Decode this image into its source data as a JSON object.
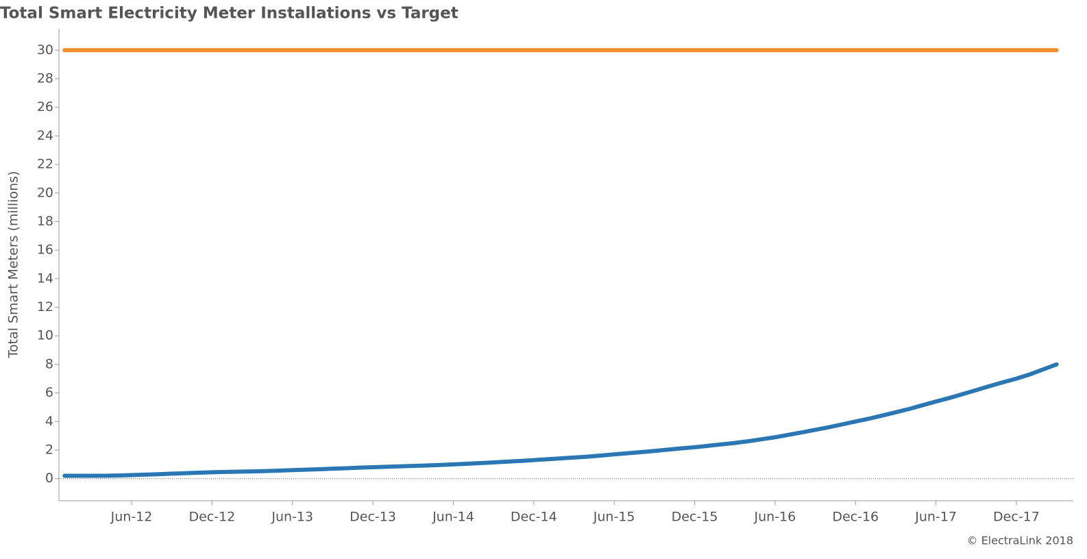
{
  "chart_data": {
    "type": "line",
    "title": "Total Smart Electricity Meter Installations vs Target",
    "y_label": "Total Smart Meters (millions)",
    "footnote": "© ElectraLink 2018",
    "categories": [
      null,
      null,
      null,
      null,
      null,
      "Jun-12",
      null,
      null,
      null,
      null,
      null,
      "Dec-12",
      null,
      null,
      null,
      null,
      null,
      "Jun-13",
      null,
      null,
      null,
      null,
      null,
      "Dec-13",
      null,
      null,
      null,
      null,
      null,
      "Jun-14",
      null,
      null,
      null,
      null,
      null,
      "Dec-14",
      null,
      null,
      null,
      null,
      null,
      "Jun-15",
      null,
      null,
      null,
      null,
      null,
      "Dec-15",
      null,
      null,
      null,
      null,
      null,
      "Jun-16",
      null,
      null,
      null,
      null,
      null,
      "Dec-16",
      null,
      null,
      null,
      null,
      null,
      "Jun-17",
      null,
      null,
      null,
      null,
      null,
      "Dec-17",
      null,
      null,
      null
    ],
    "series": [
      {
        "color": "#f28e2b",
        "values": [
          30,
          30,
          30,
          30,
          30,
          30,
          30,
          30,
          30,
          30,
          30,
          30,
          30,
          30,
          30,
          30,
          30,
          30,
          30,
          30,
          30,
          30,
          30,
          30,
          30,
          30,
          30,
          30,
          30,
          30,
          30,
          30,
          30,
          30,
          30,
          30,
          30,
          30,
          30,
          30,
          30,
          30,
          30,
          30,
          30,
          30,
          30,
          30,
          30,
          30,
          30,
          30,
          30,
          30,
          30,
          30,
          30,
          30,
          30,
          30,
          30,
          30,
          30,
          30,
          30,
          30,
          30,
          30,
          30,
          30,
          30,
          30,
          30,
          30,
          30
        ]
      },
      {
        "color": "#2a77b4",
        "values": [
          0.2,
          0.2,
          0.2,
          0.2,
          0.22,
          0.25,
          0.28,
          0.31,
          0.35,
          0.38,
          0.42,
          0.45,
          0.47,
          0.49,
          0.51,
          0.53,
          0.56,
          0.6,
          0.63,
          0.66,
          0.7,
          0.73,
          0.77,
          0.8,
          0.83,
          0.86,
          0.89,
          0.92,
          0.96,
          1.0,
          1.04,
          1.09,
          1.14,
          1.19,
          1.24,
          1.3,
          1.36,
          1.42,
          1.48,
          1.54,
          1.62,
          1.7,
          1.78,
          1.86,
          1.94,
          2.03,
          2.12,
          2.2,
          2.3,
          2.4,
          2.5,
          2.62,
          2.76,
          2.9,
          3.07,
          3.24,
          3.42,
          3.6,
          3.8,
          4.0,
          4.2,
          4.42,
          4.65,
          4.88,
          5.14,
          5.4,
          5.65,
          5.92,
          6.2,
          6.48,
          6.75,
          7.0,
          7.3,
          7.65,
          8.0
        ]
      }
    ],
    "ylim": [
      -1.5,
      31.5
    ],
    "yticks": [
      0,
      2,
      4,
      6,
      8,
      10,
      12,
      14,
      16,
      18,
      20,
      22,
      24,
      26,
      28,
      30
    ]
  }
}
